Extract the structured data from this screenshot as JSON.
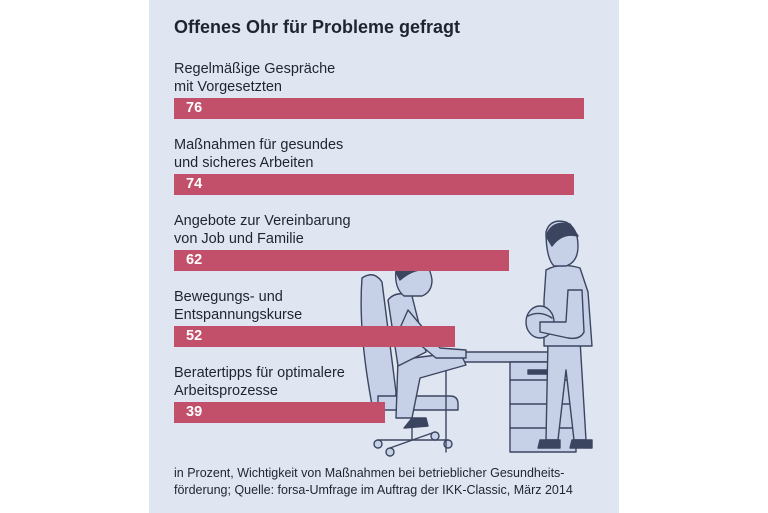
{
  "colors": {
    "panel_bg": "#dfe6f1",
    "bar": "#c2506a",
    "text": "#1f2430",
    "illustration_fill": "#c6d0e6",
    "illustration_line": "#3c4560"
  },
  "chart_data": {
    "type": "bar",
    "orientation": "horizontal",
    "title": "Offenes Ohr für Probleme gefragt",
    "categories": [
      [
        "Regelmäßige Gespräche",
        "mit Vorgesetzten"
      ],
      [
        "Maßnahmen für gesundes",
        "und sicheres Arbeiten"
      ],
      [
        "Angebote zur Vereinbarung",
        "von Job und Familie"
      ],
      [
        "Bewegungs- und",
        "Entspannungskurse"
      ],
      [
        "Beratertipps für optimalere",
        "Arbeitsprozesse"
      ]
    ],
    "values": [
      76,
      74,
      62,
      52,
      39
    ],
    "value_labels": [
      "76",
      "74",
      "62",
      "52",
      "39"
    ],
    "footnote": [
      "in Prozent, Wichtigkeit von Maßnahmen bei betrieblicher Gesundheits-",
      "förderung; Quelle: forsa-Umfrage im Auftrag der IKK-Classic, März 2014"
    ]
  },
  "illustration": {
    "icon": "office-meeting-illustration",
    "description_icons": [
      "office-chair-icon",
      "desk-icon",
      "seated-employee-icon",
      "standing-manager-icon"
    ]
  }
}
